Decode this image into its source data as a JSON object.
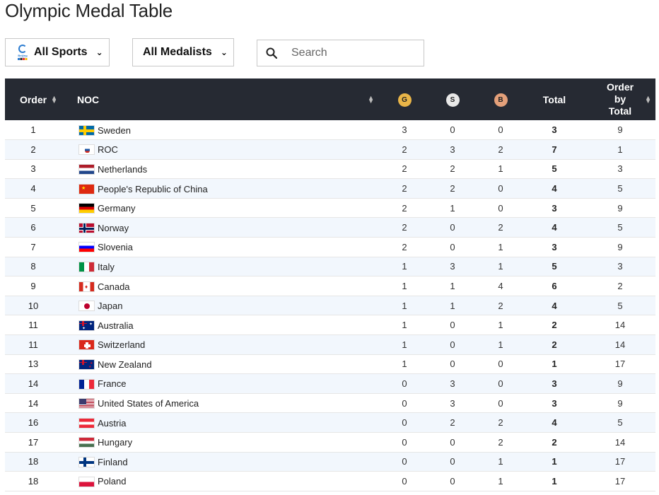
{
  "page_title": "Olympic Medal Table",
  "filters": {
    "sports_label": "All Sports",
    "sports_logo_text": "Beijing 2022",
    "medalists_label": "All Medalists"
  },
  "search": {
    "placeholder": "Search",
    "value": ""
  },
  "table": {
    "headers": {
      "order": "Order",
      "noc": "NOC",
      "gold": "G",
      "silver": "S",
      "bronze": "B",
      "total": "Total",
      "order_by_total": "Order by Total"
    },
    "colors": {
      "header_bg": "#262a33",
      "gold": "#e9b548",
      "silver": "#e8e8e8",
      "bronze": "#e4a07a",
      "row_alt": "#f2f7fd"
    },
    "rows": [
      {
        "order": "1",
        "noc": "Sweden",
        "flag": "se",
        "gold": "3",
        "silver": "0",
        "bronze": "0",
        "total": "3",
        "order_by_total": "9"
      },
      {
        "order": "2",
        "noc": "ROC",
        "flag": "roc",
        "gold": "2",
        "silver": "3",
        "bronze": "2",
        "total": "7",
        "order_by_total": "1"
      },
      {
        "order": "3",
        "noc": "Netherlands",
        "flag": "nl",
        "gold": "2",
        "silver": "2",
        "bronze": "1",
        "total": "5",
        "order_by_total": "3"
      },
      {
        "order": "4",
        "noc": "People's Republic of China",
        "flag": "cn",
        "gold": "2",
        "silver": "2",
        "bronze": "0",
        "total": "4",
        "order_by_total": "5"
      },
      {
        "order": "5",
        "noc": "Germany",
        "flag": "de",
        "gold": "2",
        "silver": "1",
        "bronze": "0",
        "total": "3",
        "order_by_total": "9"
      },
      {
        "order": "6",
        "noc": "Norway",
        "flag": "no",
        "gold": "2",
        "silver": "0",
        "bronze": "2",
        "total": "4",
        "order_by_total": "5"
      },
      {
        "order": "7",
        "noc": "Slovenia",
        "flag": "si",
        "gold": "2",
        "silver": "0",
        "bronze": "1",
        "total": "3",
        "order_by_total": "9"
      },
      {
        "order": "8",
        "noc": "Italy",
        "flag": "it",
        "gold": "1",
        "silver": "3",
        "bronze": "1",
        "total": "5",
        "order_by_total": "3"
      },
      {
        "order": "9",
        "noc": "Canada",
        "flag": "ca",
        "gold": "1",
        "silver": "1",
        "bronze": "4",
        "total": "6",
        "order_by_total": "2"
      },
      {
        "order": "10",
        "noc": "Japan",
        "flag": "jp",
        "gold": "1",
        "silver": "1",
        "bronze": "2",
        "total": "4",
        "order_by_total": "5"
      },
      {
        "order": "11",
        "noc": "Australia",
        "flag": "au",
        "gold": "1",
        "silver": "0",
        "bronze": "1",
        "total": "2",
        "order_by_total": "14"
      },
      {
        "order": "11",
        "noc": "Switzerland",
        "flag": "ch",
        "gold": "1",
        "silver": "0",
        "bronze": "1",
        "total": "2",
        "order_by_total": "14"
      },
      {
        "order": "13",
        "noc": "New Zealand",
        "flag": "nz",
        "gold": "1",
        "silver": "0",
        "bronze": "0",
        "total": "1",
        "order_by_total": "17"
      },
      {
        "order": "14",
        "noc": "France",
        "flag": "fr",
        "gold": "0",
        "silver": "3",
        "bronze": "0",
        "total": "3",
        "order_by_total": "9"
      },
      {
        "order": "14",
        "noc": "United States of America",
        "flag": "us",
        "gold": "0",
        "silver": "3",
        "bronze": "0",
        "total": "3",
        "order_by_total": "9"
      },
      {
        "order": "16",
        "noc": "Austria",
        "flag": "at",
        "gold": "0",
        "silver": "2",
        "bronze": "2",
        "total": "4",
        "order_by_total": "5"
      },
      {
        "order": "17",
        "noc": "Hungary",
        "flag": "hu",
        "gold": "0",
        "silver": "0",
        "bronze": "2",
        "total": "2",
        "order_by_total": "14"
      },
      {
        "order": "18",
        "noc": "Finland",
        "flag": "fi",
        "gold": "0",
        "silver": "0",
        "bronze": "1",
        "total": "1",
        "order_by_total": "17"
      },
      {
        "order": "18",
        "noc": "Poland",
        "flag": "pl",
        "gold": "0",
        "silver": "0",
        "bronze": "1",
        "total": "1",
        "order_by_total": "17"
      }
    ]
  }
}
